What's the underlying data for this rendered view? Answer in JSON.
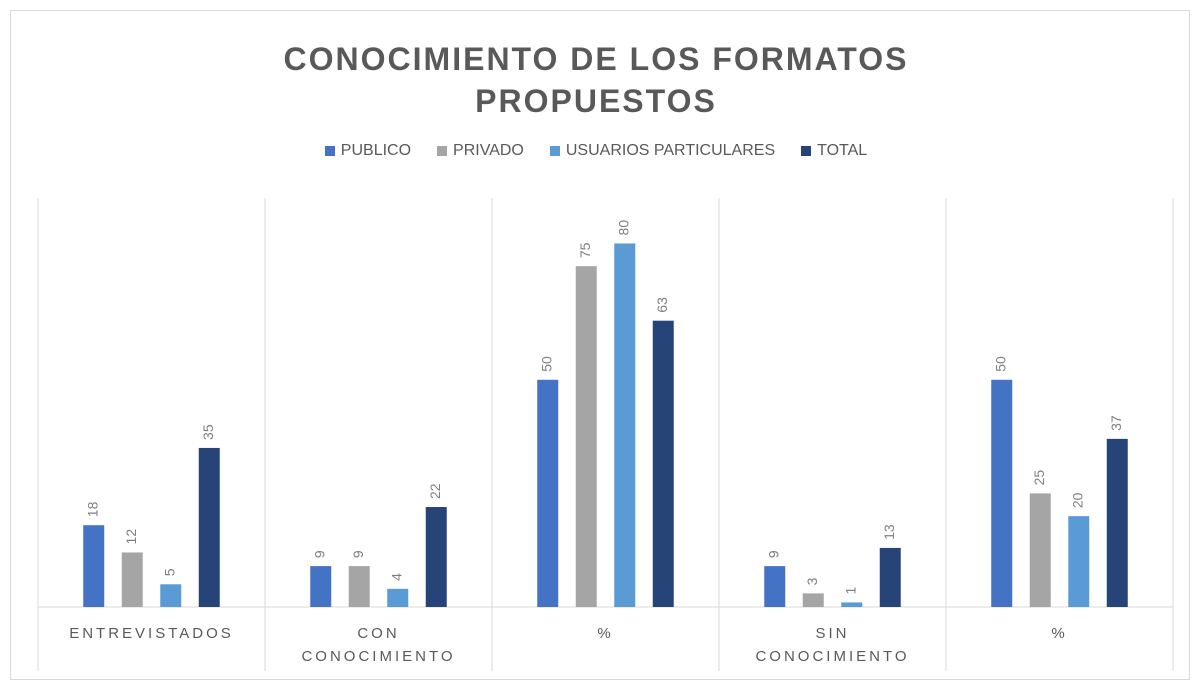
{
  "chart_data": {
    "type": "bar",
    "title": "CONOCIMIENTO DE LOS FORMATOS PROPUESTOS",
    "categories": [
      "ENTREVISTADOS",
      "CON\nCONOCIMIENTO",
      "%",
      "SIN\nCONOCIMIENTO",
      "%"
    ],
    "series": [
      {
        "name": "PUBLICO",
        "color": "#4472c4",
        "values": [
          18,
          9,
          50,
          9,
          50
        ]
      },
      {
        "name": "PRIVADO",
        "color": "#a5a5a5",
        "values": [
          12,
          9,
          75,
          3,
          25
        ]
      },
      {
        "name": "USUARIOS PARTICULARES",
        "color": "#5b9bd5",
        "values": [
          5,
          4,
          80,
          1,
          20
        ]
      },
      {
        "name": "TOTAL",
        "color": "#264478",
        "values": [
          35,
          22,
          63,
          13,
          37
        ]
      }
    ],
    "ylim": [
      0,
      90
    ],
    "legend": "top"
  }
}
